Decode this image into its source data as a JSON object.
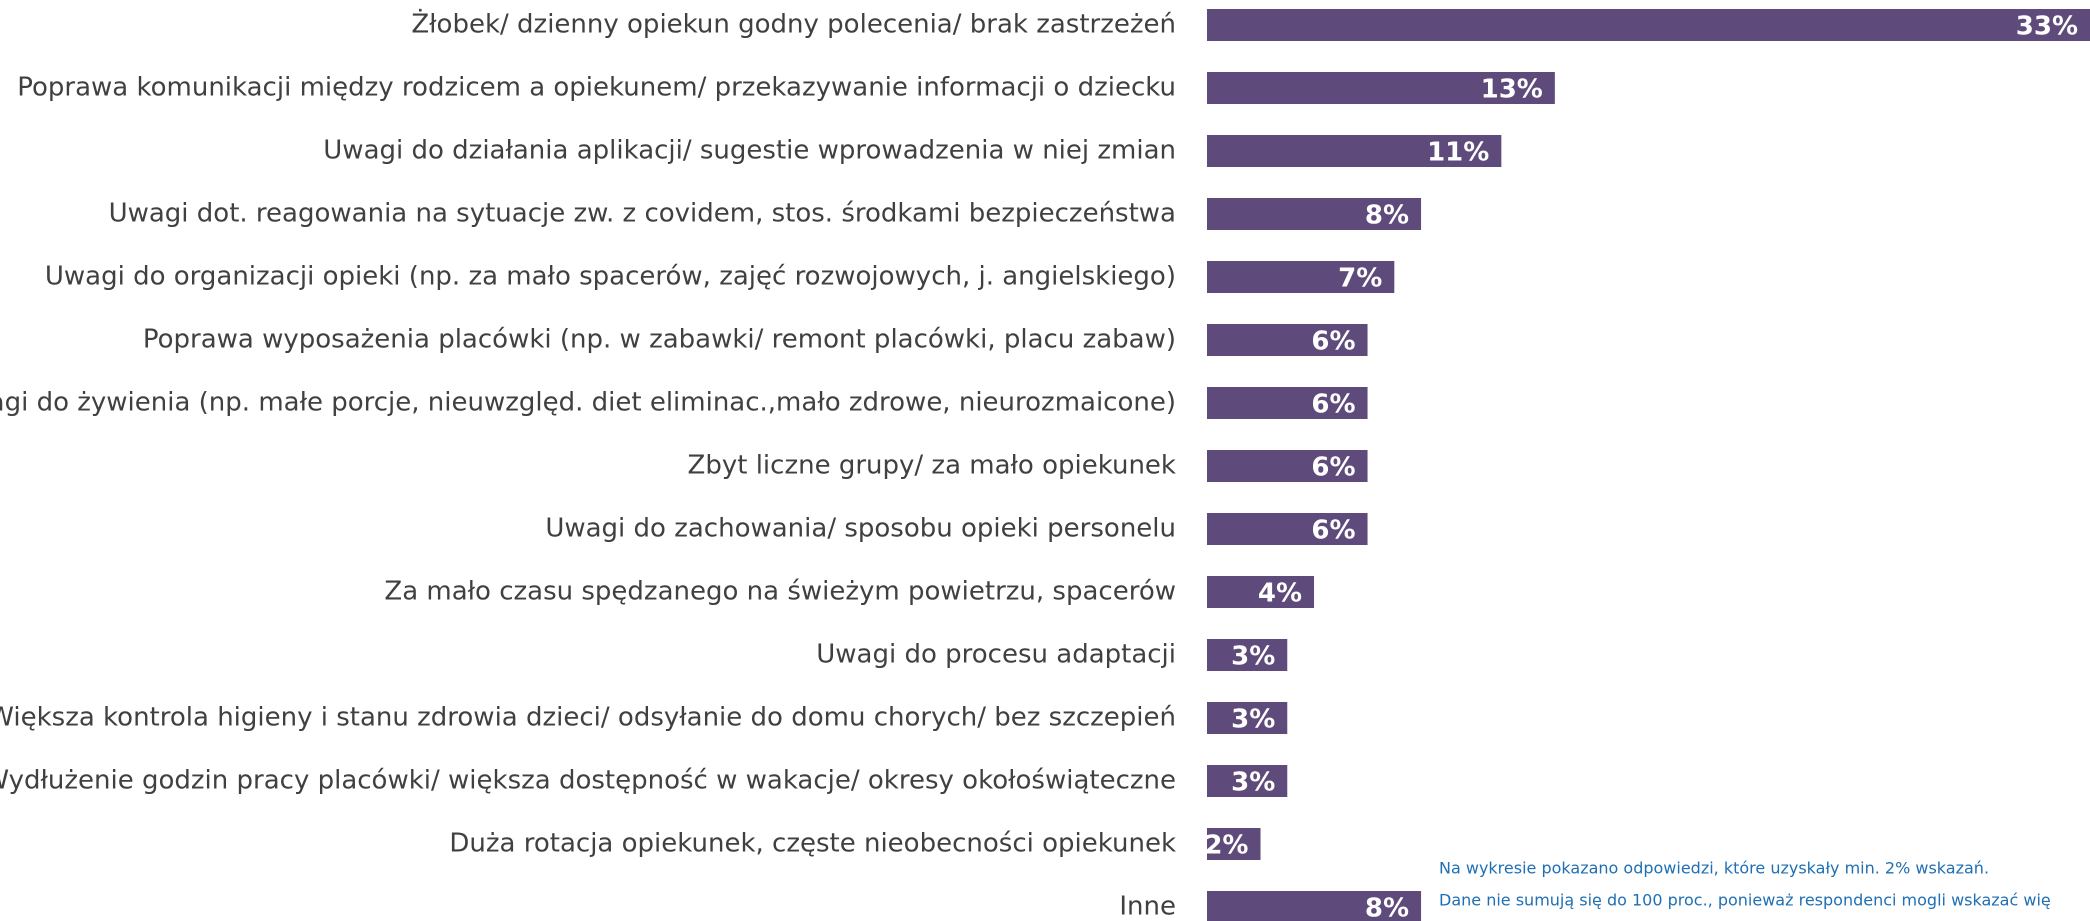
{
  "chart_data": {
    "type": "bar",
    "orientation": "horizontal",
    "color": "#5f4b7b",
    "categories": [
      "Żłobek/ dzienny opiekun godny polecenia/ brak zastrzeżeń",
      "Poprawa komunikacji między rodzicem a opiekunem/ przekazywanie informacji o dziecku",
      "Uwagi do działania aplikacji/ sugestie wprowadzenia w niej zmian",
      "Uwagi dot. reagowania na sytuacje zw. z covidem, stos. środkami bezpieczeństwa",
      "Uwagi do organizacji opieki (np. za mało spacerów, zajęć rozwojowych, j. angielskiego)",
      "Poprawa wyposażenia placówki (np. w zabawki/ remont placówki, placu zabaw)",
      "Uwagi do żywienia (np. małe porcje, nieuwzględ. diet eliminac.,mało zdrowe, nieurozmaicone)",
      "Zbyt liczne grupy/ za mało opiekunek",
      "Uwagi do zachowania/ sposobu opieki personelu",
      "Za mało czasu spędzanego na świeżym powietrzu, spacerów",
      "Uwagi do procesu adaptacji",
      "Większa kontrola higieny i stanu zdrowia dzieci/ odsyłanie do domu chorych/ bez szczepień",
      "Wydłużenie godzin pracy placówki/ większa dostępność w wakacje/ okresy okołoświąteczne",
      "Duża rotacja opiekunek, częste nieobecności opiekunek",
      "Inne"
    ],
    "values": [
      33,
      13,
      11,
      8,
      7,
      6,
      6,
      6,
      6,
      4,
      3,
      3,
      3,
      2,
      8
    ],
    "value_labels": [
      "33%",
      "13%",
      "11%",
      "8%",
      "7%",
      "6%",
      "6%",
      "6%",
      "6%",
      "4%",
      "3%",
      "3%",
      "3%",
      "2%",
      "8%"
    ],
    "notes": [
      "Na wykresie pokazano odpowiedzi, które uzyskały min. 2% wskazań.",
      "Dane nie sumują się do 100 proc., ponieważ respondenci mogli wskazać wię"
    ]
  }
}
